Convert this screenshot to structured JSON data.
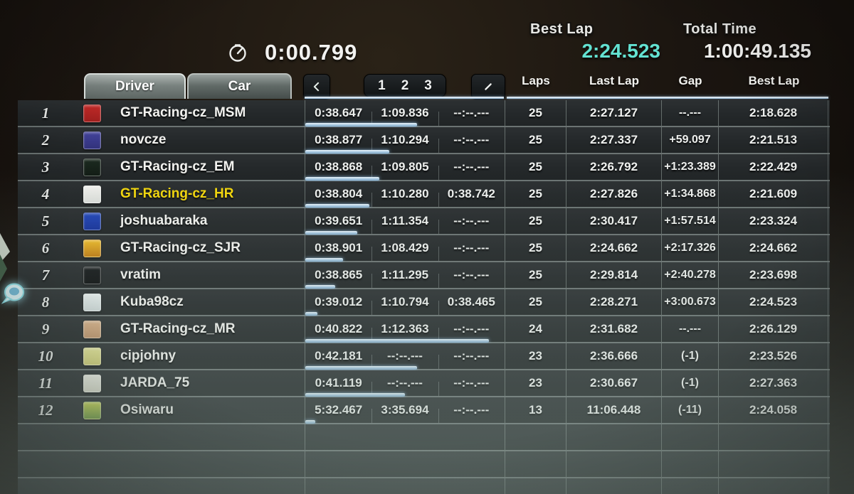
{
  "scoreboard": {
    "session_time": "0:00.799",
    "best_lap_label": "Best Lap",
    "best_lap_value": "2:24.523",
    "total_time_label": "Total Time",
    "total_time_value": "1:00:49.135",
    "tabs": {
      "driver": "Driver",
      "car": "Car"
    },
    "sector_buttons": {
      "s1": "1",
      "s2": "2",
      "s3": "3"
    },
    "columns": {
      "laps": "Laps",
      "last_lap": "Last Lap",
      "gap": "Gap",
      "best_lap": "Best Lap"
    },
    "colors": {
      "best_lap_accent": "#63e2d2",
      "highlight_name": "#f2d60c",
      "progress_bar": "#a9c9e2"
    },
    "rows": [
      {
        "pos": "1",
        "swatch": "#c22a28",
        "swatch2": "#a01f1e",
        "name": "GT-Racing-cz_MSM",
        "highlight": false,
        "s1": "0:38.647",
        "s2": "1:09.836",
        "s3": "--:--.---",
        "progress": 0.56,
        "laps": "25",
        "last_lap": "2:27.127",
        "gap": "--.---",
        "best_lap": "2:18.628"
      },
      {
        "pos": "2",
        "swatch": "#42429a",
        "swatch2": "#32327c",
        "name": "novcze",
        "highlight": false,
        "s1": "0:38.877",
        "s2": "1:10.294",
        "s3": "--:--.---",
        "progress": 0.42,
        "laps": "25",
        "last_lap": "2:27.337",
        "gap": "+59.097",
        "best_lap": "2:21.513"
      },
      {
        "pos": "3",
        "swatch": "#1c2b20",
        "swatch2": "#121c15",
        "name": "GT-Racing-cz_EM",
        "highlight": false,
        "s1": "0:38.868",
        "s2": "1:09.805",
        "s3": "--:--.---",
        "progress": 0.37,
        "laps": "25",
        "last_lap": "2:26.792",
        "gap": "+1:23.389",
        "best_lap": "2:22.429"
      },
      {
        "pos": "4",
        "swatch": "#efefec",
        "swatch2": "#d9dcd8",
        "name": "GT-Racing-cz_HR",
        "highlight": true,
        "s1": "0:38.804",
        "s2": "1:10.280",
        "s3": "0:38.742",
        "progress": 0.32,
        "laps": "25",
        "last_lap": "2:27.826",
        "gap": "+1:34.868",
        "best_lap": "2:21.609"
      },
      {
        "pos": "5",
        "swatch": "#2246b8",
        "swatch2": "#16329a",
        "name": "joshuabaraka",
        "highlight": false,
        "s1": "0:39.651",
        "s2": "1:11.354",
        "s3": "--:--.---",
        "progress": 0.26,
        "laps": "25",
        "last_lap": "2:30.417",
        "gap": "+1:57.514",
        "best_lap": "2:23.324"
      },
      {
        "pos": "6",
        "swatch": "#ecba28",
        "swatch2": "#c07c12",
        "name": "GT-Racing-cz_SJR",
        "highlight": false,
        "s1": "0:38.901",
        "s2": "1:08.429",
        "s3": "--:--.---",
        "progress": 0.19,
        "laps": "25",
        "last_lap": "2:24.662",
        "gap": "+2:17.326",
        "best_lap": "2:24.662"
      },
      {
        "pos": "7",
        "swatch": "#15181a",
        "swatch2": "#0b0d0e",
        "name": "vratim",
        "highlight": false,
        "s1": "0:38.865",
        "s2": "1:11.295",
        "s3": "--:--.---",
        "progress": 0.15,
        "laps": "25",
        "last_lap": "2:29.814",
        "gap": "+2:40.278",
        "best_lap": "2:23.698"
      },
      {
        "pos": "8",
        "swatch": "#e8eeee",
        "swatch2": "#cfd8d8",
        "name": "Kuba98cz",
        "highlight": false,
        "s1": "0:39.012",
        "s2": "1:10.794",
        "s3": "0:38.465",
        "progress": 0.06,
        "laps": "25",
        "last_lap": "2:28.271",
        "gap": "+3:00.673",
        "best_lap": "2:24.523"
      },
      {
        "pos": "9",
        "swatch": "#dab086",
        "swatch2": "#c2946a",
        "name": "GT-Racing-cz_MR",
        "highlight": false,
        "s1": "0:40.822",
        "s2": "1:12.363",
        "s3": "--:--.---",
        "progress": 0.92,
        "laps": "24",
        "last_lap": "2:31.682",
        "gap": "--.---",
        "best_lap": "2:26.129"
      },
      {
        "pos": "10",
        "swatch": "#e9e795",
        "swatch2": "#d2cf74",
        "name": "cipjohny",
        "highlight": false,
        "s1": "0:42.181",
        "s2": "--:--.---",
        "s3": "--:--.---",
        "progress": 0.56,
        "laps": "23",
        "last_lap": "2:36.666",
        "gap": "(-1)",
        "best_lap": "2:23.526"
      },
      {
        "pos": "11",
        "swatch": "#f1f1e7",
        "swatch2": "#dcdccc",
        "name": "JARDA_75",
        "highlight": false,
        "s1": "0:41.119",
        "s2": "--:--.---",
        "s3": "--:--.---",
        "progress": 0.5,
        "laps": "23",
        "last_lap": "2:30.667",
        "gap": "(-1)",
        "best_lap": "2:27.363"
      },
      {
        "pos": "12",
        "swatch": "#ccd84c",
        "swatch2": "#6f9a3c",
        "name": "Osiwaru",
        "highlight": false,
        "s1": "5:32.467",
        "s2": "3:35.694",
        "s3": "--:--.---",
        "progress": 0.05,
        "laps": "13",
        "last_lap": "11:06.448",
        "gap": "(-11)",
        "best_lap": "2:24.058"
      }
    ],
    "empty_rows": 3
  }
}
